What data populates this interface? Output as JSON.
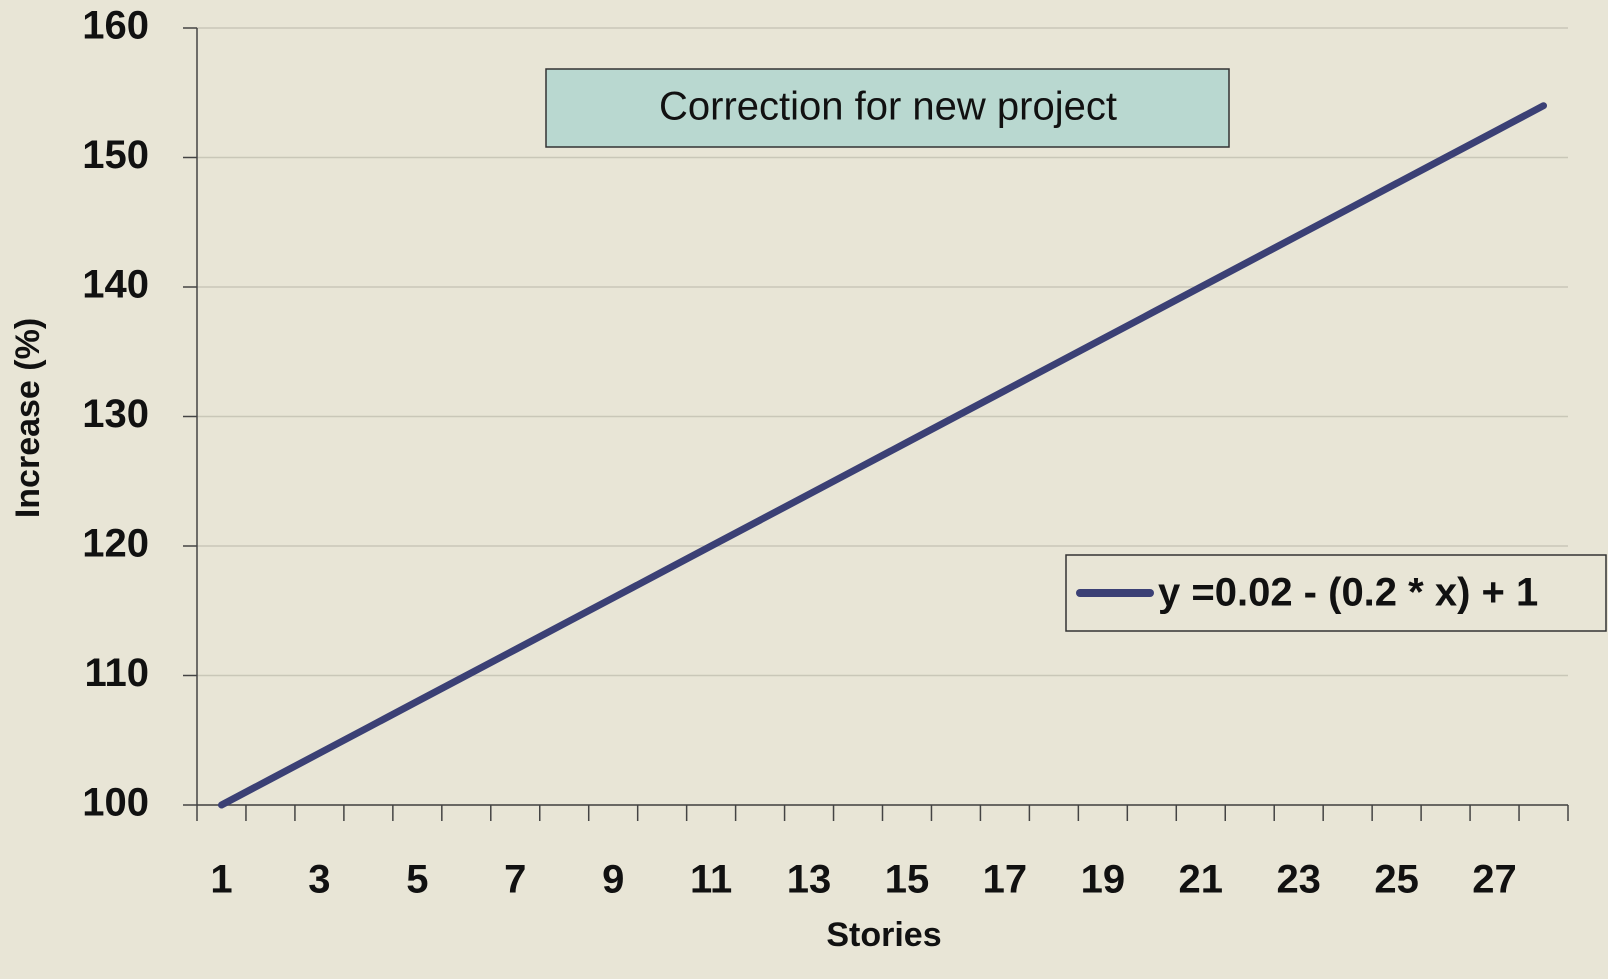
{
  "chart_data": {
    "type": "line",
    "title": "Correction for new project",
    "x_label": "Stories",
    "y_label": "Increase (%)",
    "categories": [
      "1",
      null,
      "3",
      null,
      "5",
      null,
      "7",
      null,
      "9",
      null,
      "11",
      null,
      "13",
      null,
      "15",
      null,
      "17",
      null,
      "19",
      null,
      "21",
      null,
      "23",
      null,
      "25",
      null,
      "27",
      null
    ],
    "series": [
      {
        "name": "y =0.02 - (0.2 * x) + 1",
        "color": "#3b4075",
        "values": [
          100,
          102,
          104,
          106,
          108,
          110,
          112,
          114,
          116,
          118,
          120,
          122,
          124,
          126,
          128,
          130,
          132,
          134,
          136,
          138,
          140,
          142,
          144,
          146,
          148,
          150,
          152,
          154
        ]
      }
    ],
    "ylim": [
      100,
      160
    ],
    "yticks": [
      100,
      110,
      120,
      130,
      140,
      150,
      160
    ],
    "grid": true,
    "legend": "right"
  }
}
